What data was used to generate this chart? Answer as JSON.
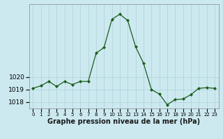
{
  "x": [
    0,
    1,
    2,
    3,
    4,
    5,
    6,
    7,
    8,
    9,
    10,
    11,
    12,
    13,
    14,
    15,
    16,
    17,
    18,
    19,
    20,
    21,
    22,
    23
  ],
  "y": [
    1019.1,
    1019.3,
    1019.65,
    1019.25,
    1019.65,
    1019.4,
    1019.65,
    1019.65,
    1021.9,
    1022.35,
    1024.6,
    1025.0,
    1024.5,
    1022.4,
    1021.1,
    1019.0,
    1018.65,
    1017.8,
    1018.2,
    1018.25,
    1018.6,
    1019.1,
    1019.15,
    1019.1
  ],
  "line_color": "#1a5c1a",
  "marker": "D",
  "marker_size": 2.2,
  "bg_color": "#cce9f0",
  "grid_color": "#b0cfd8",
  "xlabel": "Graphe pression niveau de la mer (hPa)",
  "ylim": [
    1017.5,
    1025.8
  ],
  "yticks": [
    1018,
    1019,
    1020
  ],
  "xlim": [
    -0.5,
    23.5
  ],
  "label_fontsize": 7,
  "tick_fontsize": 6.5
}
